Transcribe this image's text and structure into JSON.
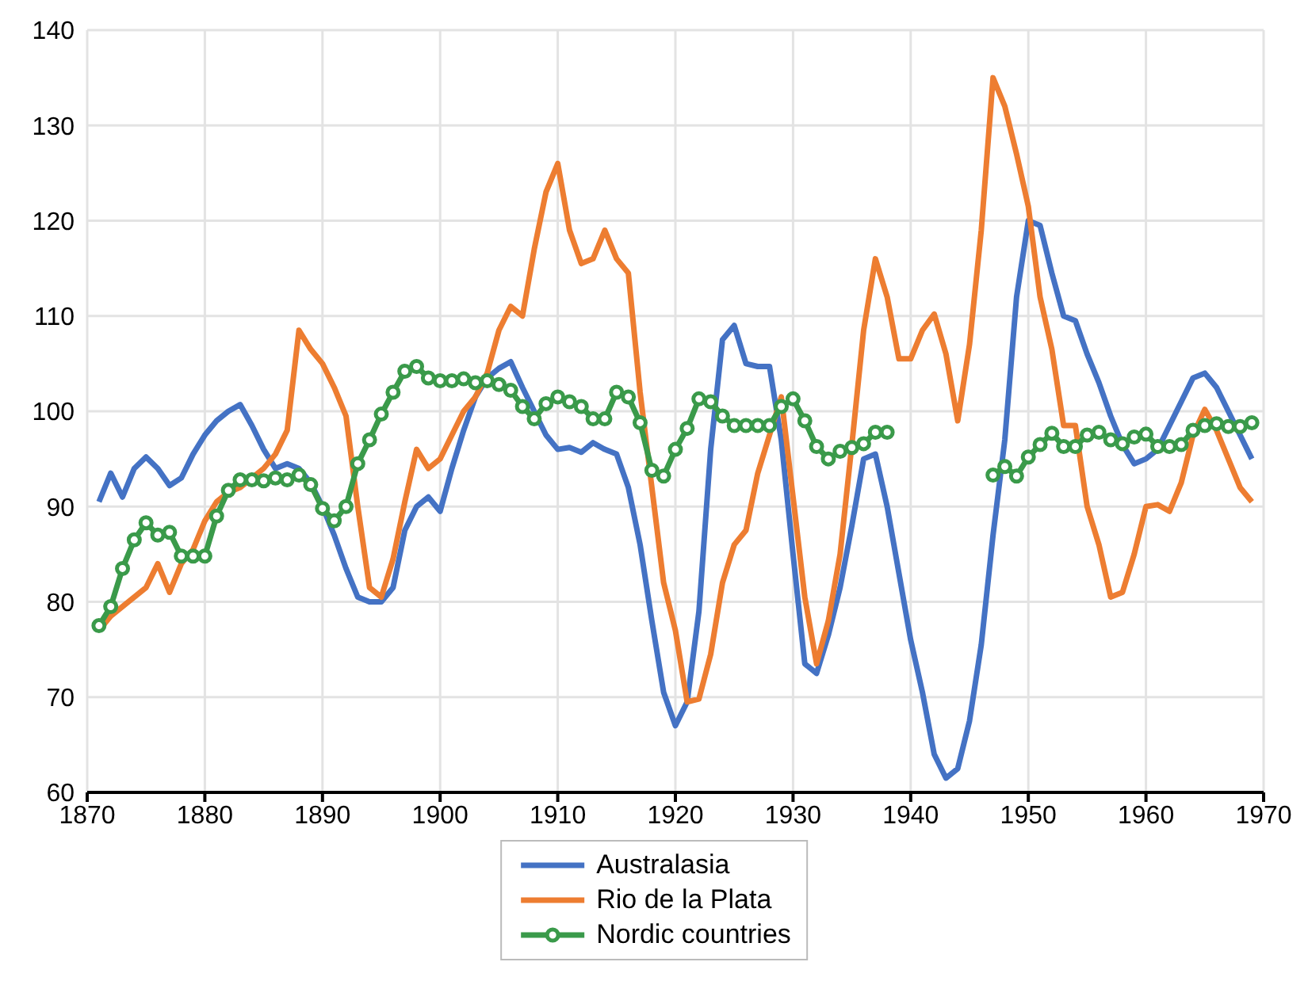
{
  "chart_data": {
    "type": "line",
    "x": [
      1871,
      1872,
      1873,
      1874,
      1875,
      1876,
      1877,
      1878,
      1879,
      1880,
      1881,
      1882,
      1883,
      1884,
      1885,
      1886,
      1887,
      1888,
      1889,
      1890,
      1891,
      1892,
      1893,
      1894,
      1895,
      1896,
      1897,
      1898,
      1899,
      1900,
      1901,
      1902,
      1903,
      1904,
      1905,
      1906,
      1907,
      1908,
      1909,
      1910,
      1911,
      1912,
      1913,
      1914,
      1915,
      1916,
      1917,
      1918,
      1919,
      1920,
      1921,
      1922,
      1923,
      1924,
      1925,
      1926,
      1927,
      1928,
      1929,
      1930,
      1931,
      1932,
      1933,
      1934,
      1935,
      1936,
      1937,
      1938,
      1939,
      1940,
      1941,
      1942,
      1943,
      1944,
      1945,
      1946,
      1947,
      1948,
      1949,
      1950,
      1951,
      1952,
      1953,
      1954,
      1955,
      1956,
      1957,
      1958,
      1959,
      1960,
      1961,
      1962,
      1963,
      1964,
      1965,
      1966,
      1967,
      1968,
      1969
    ],
    "series": [
      {
        "name": "Australasia",
        "color": "#4472c4",
        "marker": "none",
        "values": [
          90.5,
          93.5,
          91,
          94,
          95.2,
          94,
          92.2,
          93,
          95.5,
          97.5,
          99,
          100,
          100.7,
          98.5,
          96,
          94,
          94.5,
          94,
          92.5,
          90,
          87,
          83.5,
          80.5,
          80,
          80,
          81.5,
          87.5,
          90,
          91,
          89.5,
          94,
          98,
          101.5,
          103.5,
          104.5,
          105.2,
          102.5,
          100,
          97.5,
          96,
          96.2,
          95.7,
          96.7,
          96,
          95.5,
          92,
          86,
          78,
          70.5,
          67,
          69.5,
          79,
          96,
          107.5,
          109,
          105,
          104.7,
          104.7,
          97,
          85,
          73.5,
          72.5,
          76.5,
          81.5,
          88,
          95,
          95.5,
          90,
          83,
          76,
          70.5,
          64,
          61.5,
          62.5,
          67.5,
          75.5,
          87,
          97,
          112,
          120,
          119.5,
          114.5,
          110,
          109.5,
          106,
          103,
          99.5,
          96.5,
          94.5,
          95,
          96,
          98.5,
          101,
          103.5,
          104,
          102.5,
          100,
          97.5,
          95
        ]
      },
      {
        "name": "Rio de la Plata",
        "color": "#ed7d31",
        "marker": "none",
        "values": [
          77,
          78.5,
          79.5,
          80.5,
          81.5,
          84,
          81,
          84,
          85.5,
          88.5,
          90.5,
          91.5,
          92,
          93,
          94,
          95.5,
          98,
          108.5,
          106.5,
          105,
          102.5,
          99.5,
          90,
          81.5,
          80.5,
          84.5,
          90.5,
          96,
          94,
          95,
          97.5,
          100,
          101.5,
          104,
          108.5,
          111,
          110,
          117,
          123,
          126,
          119,
          115.5,
          116,
          119,
          116,
          114.5,
          102,
          92,
          82,
          77,
          69.5,
          69.8,
          74.5,
          82,
          86,
          87.5,
          93.5,
          97.5,
          101.5,
          91,
          80.5,
          73.5,
          78,
          85,
          96.5,
          108.5,
          116,
          112,
          105.5,
          105.5,
          108.5,
          110.2,
          106,
          99,
          107,
          119,
          135,
          132,
          127,
          121.5,
          112,
          106.5,
          98.5,
          98.5,
          90,
          86,
          80.5,
          81,
          85,
          90,
          90.2,
          89.5,
          92.5,
          97.5,
          100.2,
          98,
          95,
          92,
          90.5
        ]
      },
      {
        "name": "Nordic countries",
        "color": "#3a9a4a",
        "marker": "circle",
        "values": [
          77.5,
          79.5,
          83.5,
          86.5,
          88.3,
          87,
          87.3,
          84.8,
          84.8,
          84.8,
          89,
          91.7,
          92.8,
          92.8,
          92.7,
          93,
          92.8,
          93.3,
          92.3,
          89.8,
          88.5,
          90,
          94.5,
          97,
          99.7,
          102,
          104.2,
          104.7,
          103.5,
          103.2,
          103.2,
          103.4,
          103,
          103.2,
          102.8,
          102.2,
          100.5,
          99.2,
          100.8,
          101.5,
          101,
          100.5,
          99.2,
          99.2,
          102,
          101.5,
          98.8,
          93.8,
          93.2,
          96,
          98.2,
          101.3,
          101,
          99.5,
          98.5,
          98.5,
          98.5,
          98.5,
          100.5,
          101.3,
          99,
          96.3,
          95,
          95.8,
          96.2,
          96.6,
          97.8,
          97.8,
          null,
          null,
          null,
          null,
          null,
          null,
          null,
          null,
          93.3,
          94.2,
          93.2,
          95.2,
          96.5,
          97.7,
          96.3,
          96.3,
          97.5,
          97.8,
          97,
          96.6,
          97.3,
          97.6,
          96.3,
          96.3,
          96.5,
          98,
          98.5,
          98.7,
          98.4,
          98.4,
          98.8
        ]
      }
    ],
    "xlim": [
      1870,
      1970
    ],
    "xticks": [
      1870,
      1880,
      1890,
      1900,
      1910,
      1920,
      1930,
      1940,
      1950,
      1960,
      1970
    ],
    "ylim": [
      60,
      140
    ],
    "yticks": [
      60,
      70,
      80,
      90,
      100,
      110,
      120,
      130,
      140
    ],
    "grid": true,
    "legend": "bottom",
    "line_style": "solid"
  }
}
